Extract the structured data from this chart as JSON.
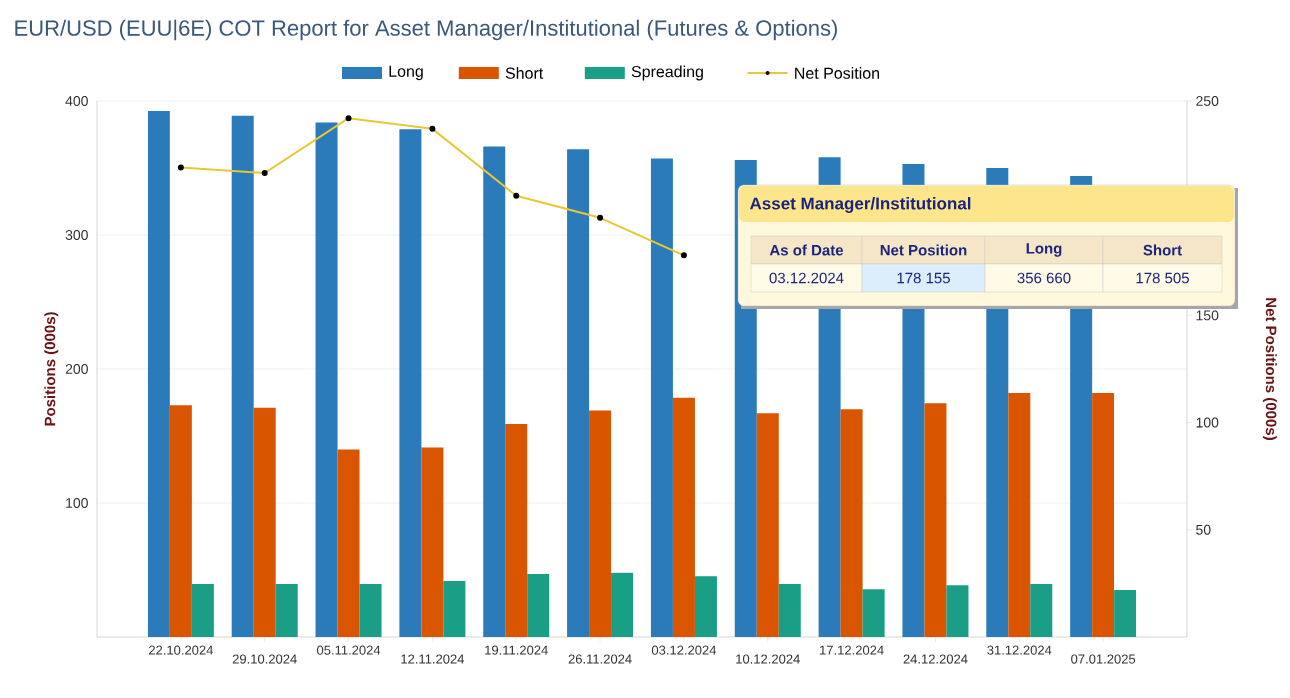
{
  "chart_data": {
    "type": "bar",
    "title": "EUR/USD (EUU|6E) COT Report for Asset Manager/Institutional (Futures & Options)",
    "ylabel": "Positions (000s)",
    "y2label": "Net Positions (000s)",
    "categories": [
      "22.10.2024",
      "29.10.2024",
      "05.11.2024",
      "12.11.2024",
      "19.11.2024",
      "26.11.2024",
      "03.12.2024",
      "10.12.2024",
      "17.12.2024",
      "24.12.2024",
      "31.12.2024",
      "07.01.2025"
    ],
    "series": [
      {
        "name": "Long",
        "color": "#2b7bba",
        "values": [
          392.5,
          389,
          384,
          379,
          366,
          364,
          357,
          356,
          358,
          353,
          350,
          344
        ]
      },
      {
        "name": "Short",
        "color": "#d95500",
        "values": [
          173,
          171,
          140,
          141.5,
          159,
          169,
          178.5,
          167,
          170,
          174.5,
          182,
          182
        ]
      },
      {
        "name": "Spreading",
        "color": "#1a9e85",
        "values": [
          39.5,
          39.5,
          39.5,
          41.7,
          47,
          48,
          45.4,
          39.5,
          35.7,
          38.7,
          39.5,
          35
        ]
      },
      {
        "name": "Net Position",
        "type": "line",
        "axis": "y2",
        "color": "#e6c832",
        "marker": "circle",
        "line_style": "solid",
        "values": [
          219,
          216.4,
          242,
          237,
          205.8,
          195.5,
          178,
          null,
          null,
          null,
          null,
          null
        ]
      }
    ],
    "ylim": [
      0,
      400
    ],
    "yticks": [
      100,
      200,
      300,
      400
    ],
    "y2lim": [
      0,
      250
    ],
    "y2ticks": [
      50,
      100,
      150,
      250
    ],
    "grid": "y",
    "legend": "top",
    "annotations": [
      "Asset Manager/Institutional",
      "As of Date",
      "Net Position",
      "Long",
      "Short",
      "03.12.2024",
      "178 155",
      "356 660",
      "178 505"
    ]
  }
}
